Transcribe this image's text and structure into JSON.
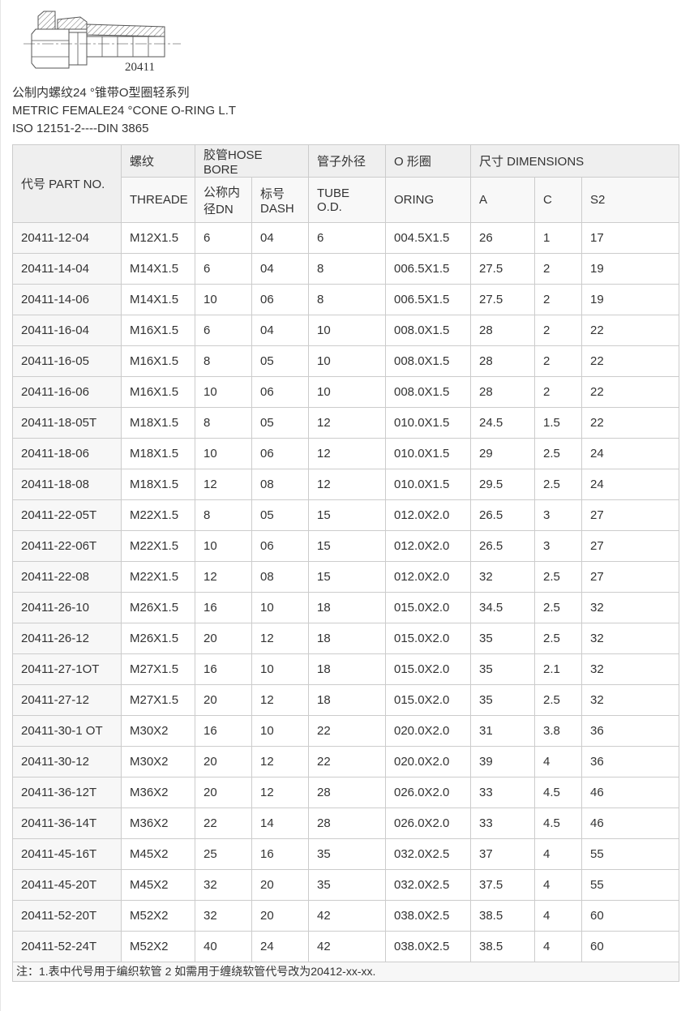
{
  "drawing": {
    "label": "20411"
  },
  "titles": {
    "line1": "公制内螺纹24 °锥带O型圈轻系列",
    "line2": "METRIC FEMALE24 °CONE O-RING L.T",
    "line3": "ISO 12151-2----DIN 3865"
  },
  "table": {
    "headers": {
      "part_no": "代号 PART NO.",
      "thread_cn": "螺纹",
      "thread_en": "THREADE",
      "hose_bore": "胶管HOSE BORE",
      "dn": "公称内径DN",
      "dash": "标号 DASH",
      "tube_od_cn": "管子外径",
      "tube_od_en": "TUBE O.D.",
      "oring_cn": "O 形圈",
      "oring_en": "ORING",
      "dimensions": "尺寸 DIMENSIONS",
      "dim_a": "A",
      "dim_c": "C",
      "dim_s2": "S2"
    },
    "rows": [
      [
        "20411-12-04",
        "M12X1.5",
        "6",
        "04",
        "6",
        "004.5X1.5",
        "26",
        "1",
        "17"
      ],
      [
        "20411-14-04",
        "M14X1.5",
        "6",
        "04",
        "8",
        "006.5X1.5",
        "27.5",
        "2",
        "19"
      ],
      [
        "20411-14-06",
        "M14X1.5",
        "10",
        "06",
        "8",
        "006.5X1.5",
        "27.5",
        "2",
        "19"
      ],
      [
        "20411-16-04",
        "M16X1.5",
        "6",
        "04",
        "10",
        "008.0X1.5",
        "28",
        "2",
        "22"
      ],
      [
        "20411-16-05",
        "M16X1.5",
        "8",
        "05",
        "10",
        "008.0X1.5",
        "28",
        "2",
        "22"
      ],
      [
        "20411-16-06",
        "M16X1.5",
        "10",
        "06",
        "10",
        "008.0X1.5",
        "28",
        "2",
        "22"
      ],
      [
        "20411-18-05T",
        "M18X1.5",
        "8",
        "05",
        "12",
        "010.0X1.5",
        "24.5",
        "1.5",
        "22"
      ],
      [
        "20411-18-06",
        "M18X1.5",
        "10",
        "06",
        "12",
        "010.0X1.5",
        "29",
        "2.5",
        "24"
      ],
      [
        "20411-18-08",
        "M18X1.5",
        "12",
        "08",
        "12",
        "010.0X1.5",
        "29.5",
        "2.5",
        "24"
      ],
      [
        "20411-22-05T",
        "M22X1.5",
        "8",
        "05",
        "15",
        "012.0X2.0",
        "26.5",
        "3",
        "27"
      ],
      [
        "20411-22-06T",
        "M22X1.5",
        "10",
        "06",
        "15",
        "012.0X2.0",
        "26.5",
        "3",
        "27"
      ],
      [
        "20411-22-08",
        "M22X1.5",
        "12",
        "08",
        "15",
        "012.0X2.0",
        "32",
        "2.5",
        "27"
      ],
      [
        "20411-26-10",
        "M26X1.5",
        "16",
        "10",
        "18",
        "015.0X2.0",
        "34.5",
        "2.5",
        "32"
      ],
      [
        "20411-26-12",
        "M26X1.5",
        "20",
        "12",
        "18",
        "015.0X2.0",
        "35",
        "2.5",
        "32"
      ],
      [
        "20411-27-1OT",
        "M27X1.5",
        "16",
        "10",
        "18",
        "015.0X2.0",
        "35",
        "2.1",
        "32"
      ],
      [
        "20411-27-12",
        "M27X1.5",
        "20",
        "12",
        "18",
        "015.0X2.0",
        "35",
        "2.5",
        "32"
      ],
      [
        "20411-30-1 OT",
        "M30X2",
        "16",
        "10",
        "22",
        "020.0X2.0",
        "31",
        "3.8",
        "36"
      ],
      [
        "20411-30-12",
        "M30X2",
        "20",
        "12",
        "22",
        "020.0X2.0",
        "39",
        "4",
        "36"
      ],
      [
        "20411-36-12T",
        "M36X2",
        "20",
        "12",
        "28",
        "026.0X2.0",
        "33",
        "4.5",
        "46"
      ],
      [
        "20411-36-14T",
        "M36X2",
        "22",
        "14",
        "28",
        "026.0X2.0",
        "33",
        "4.5",
        "46"
      ],
      [
        "20411-45-16T",
        "M45X2",
        "25",
        "16",
        "35",
        "032.0X2.5",
        "37",
        "4",
        "55"
      ],
      [
        "20411-45-20T",
        "M45X2",
        "32",
        "20",
        "35",
        "032.0X2.5",
        "37.5",
        "4",
        "55"
      ],
      [
        "20411-52-20T",
        "M52X2",
        "32",
        "20",
        "42",
        "038.0X2.5",
        "38.5",
        "4",
        "60"
      ],
      [
        "20411-52-24T",
        "M52X2",
        "40",
        "24",
        "42",
        "038.0X2.5",
        "38.5",
        "4",
        "60"
      ]
    ],
    "note": "注：1.表中代号用于编织软管 2 如需用于缠绕软管代号改为20412-xx-xx."
  },
  "colors": {
    "text": "#333333",
    "border": "#cccccc",
    "header_bg": "#efefef",
    "subheader_bg": "#f8f8f8",
    "first_column_bg": "#f7f7f7",
    "note_bg": "#f7f7f7"
  }
}
